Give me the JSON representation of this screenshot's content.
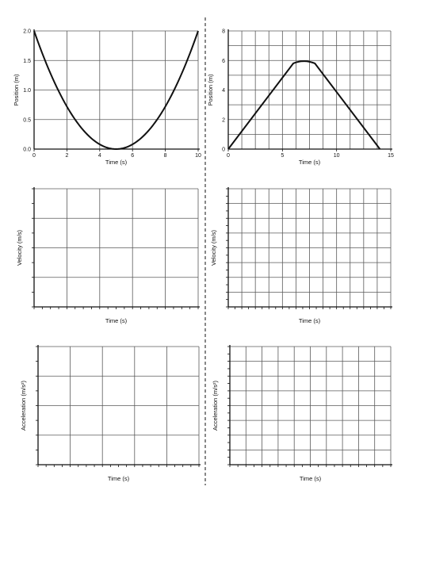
{
  "colors": {
    "ink": "#111111",
    "grid": "#5a5a5a",
    "paper": "#ffffff"
  },
  "chart_data": [
    {
      "id": "position-left",
      "type": "line",
      "title": "",
      "xlabel": "Time (s)",
      "ylabel": "Position (m)",
      "xlim": [
        0,
        10
      ],
      "ylim": [
        0,
        2.0
      ],
      "xticks": [
        "0",
        "2",
        "4",
        "6",
        "8",
        "10"
      ],
      "yticks": [
        "0.0",
        "0.5",
        "1.0",
        "1.5",
        "2.0"
      ],
      "grid": true,
      "series": [
        {
          "x": [
            0,
            1,
            2,
            3,
            4,
            5,
            6,
            7,
            8,
            9,
            10
          ],
          "y": [
            2.0,
            1.28,
            0.72,
            0.32,
            0.08,
            0.0,
            0.08,
            0.32,
            0.72,
            1.28,
            2.0
          ]
        }
      ]
    },
    {
      "id": "position-right",
      "type": "line",
      "title": "",
      "xlabel": "Time (s)",
      "ylabel": "Position (m)",
      "xlim": [
        0,
        15
      ],
      "ylim": [
        0,
        8
      ],
      "xticks": [
        "0",
        "5",
        "10",
        "15"
      ],
      "yticks": [
        "0",
        "2",
        "4",
        "6",
        "8"
      ],
      "grid": true,
      "series": [
        {
          "x": [
            0,
            6,
            7,
            8,
            14
          ],
          "y": [
            0,
            5.8,
            6.0,
            5.8,
            0
          ]
        }
      ]
    },
    {
      "id": "velocity-left",
      "type": "line",
      "title": "",
      "xlabel": "Time (s)",
      "ylabel": "Velocity (m/s)",
      "grid": true,
      "series": []
    },
    {
      "id": "velocity-right",
      "type": "line",
      "title": "",
      "xlabel": "Time (s)",
      "ylabel": "Velocity (m/s)",
      "grid": true,
      "series": []
    },
    {
      "id": "acceleration-left",
      "type": "line",
      "title": "",
      "xlabel": "Time (s)",
      "ylabel": "Acceleration (m/s²)",
      "grid": true,
      "series": []
    },
    {
      "id": "acceleration-right",
      "type": "line",
      "title": "",
      "xlabel": "Time (s)",
      "ylabel": "Acceleration (m/s²)",
      "grid": true,
      "series": []
    }
  ]
}
